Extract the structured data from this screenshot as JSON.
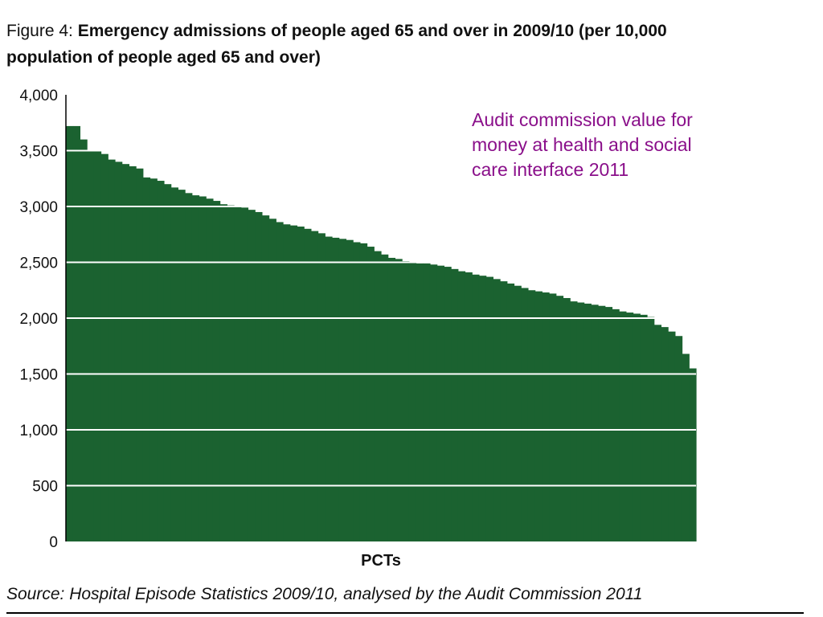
{
  "figure": {
    "label": "Figure 4:",
    "title_line1": "Emergency admissions of people aged 65 and over in 2009/10 (per 10,000",
    "title_line2": "population of people aged 65 and over)"
  },
  "annotation": {
    "line1": "Audit commission value for",
    "line2": "money at health and social",
    "line3": "care interface 2011"
  },
  "source": "Source: Hospital Episode Statistics 2009/10, analysed by the Audit Commission 2011",
  "colors": {
    "bars": "#1b6230",
    "gridlines": "#ffffff",
    "annotation": "#8a0f8a"
  },
  "chart_data": {
    "type": "bar",
    "title": "Emergency admissions of people aged 65 and over in 2009/10 (per 10,000 population of people aged 65 and over)",
    "xlabel": "PCTs",
    "ylabel": "",
    "ylim": [
      0,
      4000
    ],
    "yticks": [
      "0",
      "500",
      "1,000",
      "1,500",
      "2,000",
      "2,500",
      "3,000",
      "3,500",
      "4,000"
    ],
    "grid": "horizontal white gridlines drawn over the bars",
    "categories_note": "individual PCTs, unlabeled, sorted in descending order",
    "values": [
      3720,
      3720,
      3600,
      3500,
      3500,
      3470,
      3420,
      3400,
      3380,
      3360,
      3340,
      3260,
      3250,
      3230,
      3200,
      3170,
      3150,
      3120,
      3100,
      3090,
      3070,
      3050,
      3020,
      3010,
      3000,
      2990,
      2970,
      2950,
      2920,
      2890,
      2860,
      2840,
      2830,
      2820,
      2800,
      2780,
      2760,
      2730,
      2720,
      2710,
      2700,
      2680,
      2670,
      2640,
      2600,
      2570,
      2540,
      2530,
      2510,
      2500,
      2490,
      2490,
      2480,
      2470,
      2460,
      2440,
      2420,
      2410,
      2390,
      2380,
      2370,
      2350,
      2330,
      2310,
      2290,
      2270,
      2250,
      2240,
      2230,
      2220,
      2200,
      2180,
      2150,
      2140,
      2130,
      2120,
      2110,
      2100,
      2080,
      2060,
      2050,
      2040,
      2030,
      2010,
      1940,
      1920,
      1880,
      1840,
      1680,
      1550
    ]
  }
}
